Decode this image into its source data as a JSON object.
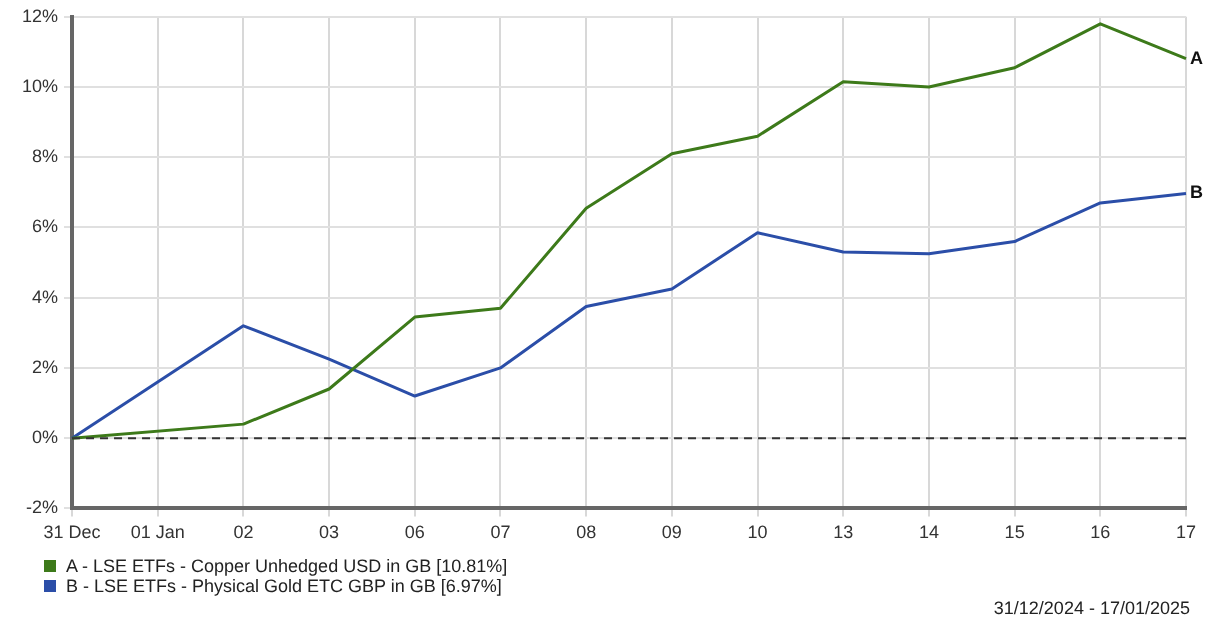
{
  "chart_data": {
    "type": "line",
    "categories": [
      "31 Dec",
      "01 Jan",
      "02",
      "03",
      "06",
      "07",
      "08",
      "09",
      "10",
      "13",
      "14",
      "15",
      "16",
      "17"
    ],
    "series": [
      {
        "name": "A - LSE ETFs - Copper Unhedged USD in GB [10.81%]",
        "color": "#3d7a1a",
        "values": [
          0,
          null,
          0.4,
          1.4,
          3.45,
          3.7,
          6.55,
          8.1,
          8.6,
          10.15,
          10.0,
          10.55,
          11.8,
          10.81
        ]
      },
      {
        "name": "B - LSE ETFs - Physical Gold ETC GBP in GB [6.97%]",
        "color": "#2b4ea8",
        "values": [
          0,
          null,
          3.2,
          2.25,
          1.2,
          2.0,
          3.75,
          4.25,
          5.85,
          5.3,
          5.25,
          5.6,
          6.7,
          6.97
        ]
      }
    ],
    "ylim": [
      -2,
      12
    ],
    "yticks": [
      {
        "value": -2,
        "label": "-2%"
      },
      {
        "value": 0,
        "label": "0%"
      },
      {
        "value": 2,
        "label": "2%"
      },
      {
        "value": 4,
        "label": "4%"
      },
      {
        "value": 6,
        "label": "6%"
      },
      {
        "value": 8,
        "label": "8%"
      },
      {
        "value": 10,
        "label": "10%"
      },
      {
        "value": 12,
        "label": "12%"
      }
    ],
    "ref_lines": [
      {
        "axis": "y",
        "value": 0,
        "color": "#333333",
        "line_style": "dashed"
      }
    ],
    "annotations": [
      {
        "text": "A",
        "x": "17",
        "y": 10.81
      },
      {
        "text": "B",
        "x": "17",
        "y": 6.97
      },
      "31/12/2024 - 17/01/2025"
    ],
    "grid": true,
    "legend": "bottom",
    "marker": "none",
    "line_style": "solid"
  }
}
